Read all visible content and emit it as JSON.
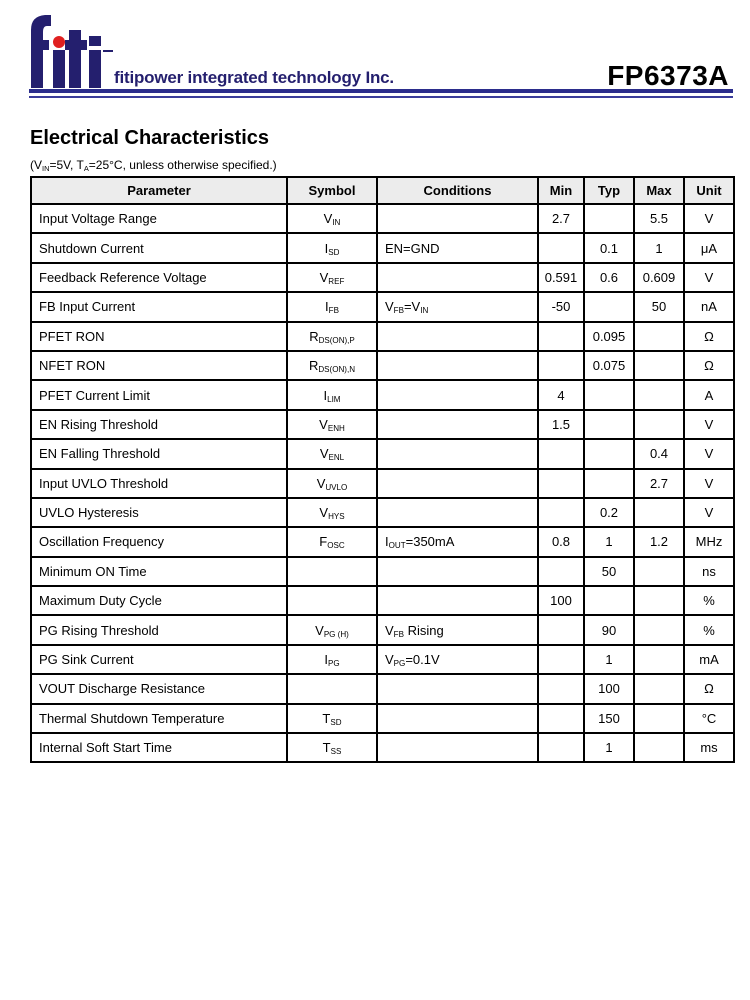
{
  "header": {
    "logo_text": "fiti",
    "company": "fitipower integrated technology Inc.",
    "part_number": "FP6373A",
    "brand_color": "#241f6e",
    "accent_dot_color": "#e02020"
  },
  "section": {
    "title": "Electrical Characteristics",
    "note_parts": [
      {
        "t": "(V"
      },
      {
        "t": "IN",
        "sub": true
      },
      {
        "t": "=5V, T"
      },
      {
        "t": "A",
        "sub": true
      },
      {
        "t": "=25°C, unless otherwise specified.)"
      }
    ]
  },
  "table": {
    "headers": [
      "Parameter",
      "Symbol",
      "Conditions",
      "Min",
      "Typ",
      "Max",
      "Unit"
    ],
    "rows": [
      {
        "param": "Input Voltage Range",
        "sym": [
          {
            "t": "V"
          },
          {
            "t": "IN",
            "sub": true
          }
        ],
        "cond": [],
        "min": "2.7",
        "typ": "",
        "max": "5.5",
        "unit": "V"
      },
      {
        "param": "Shutdown Current",
        "sym": [
          {
            "t": "I"
          },
          {
            "t": "SD",
            "sub": true
          }
        ],
        "cond": [
          {
            "t": "EN=GND"
          }
        ],
        "min": "",
        "typ": "0.1",
        "max": "1",
        "unit": "μA"
      },
      {
        "param": "Feedback Reference Voltage",
        "sym": [
          {
            "t": "V"
          },
          {
            "t": "REF",
            "sub": true
          }
        ],
        "cond": [],
        "min": "0.591",
        "typ": "0.6",
        "max": "0.609",
        "unit": "V"
      },
      {
        "param": "FB Input Current",
        "sym": [
          {
            "t": "I"
          },
          {
            "t": "FB",
            "sub": true
          }
        ],
        "cond": [
          {
            "t": "V"
          },
          {
            "t": "FB",
            "sub": true
          },
          {
            "t": "=V"
          },
          {
            "t": "IN",
            "sub": true
          }
        ],
        "min": "-50",
        "typ": "",
        "max": "50",
        "unit": "nA"
      },
      {
        "param": "PFET RON",
        "sym": [
          {
            "t": "R"
          },
          {
            "t": "DS(ON),P",
            "sub": true
          }
        ],
        "cond": [],
        "min": "",
        "typ": "0.095",
        "max": "",
        "unit": "Ω"
      },
      {
        "param": "NFET RON",
        "sym": [
          {
            "t": "R"
          },
          {
            "t": "DS(ON),N",
            "sub": true
          }
        ],
        "cond": [],
        "min": "",
        "typ": "0.075",
        "max": "",
        "unit": "Ω"
      },
      {
        "param": "PFET Current Limit",
        "sym": [
          {
            "t": "I"
          },
          {
            "t": "LIM",
            "sub": true
          }
        ],
        "cond": [],
        "min": "4",
        "typ": "",
        "max": "",
        "unit": "A"
      },
      {
        "param": "EN Rising Threshold",
        "sym": [
          {
            "t": "V"
          },
          {
            "t": "ENH",
            "sub": true
          }
        ],
        "cond": [],
        "min": "1.5",
        "typ": "",
        "max": "",
        "unit": "V"
      },
      {
        "param": "EN Falling Threshold",
        "sym": [
          {
            "t": "V"
          },
          {
            "t": "ENL",
            "sub": true
          }
        ],
        "cond": [],
        "min": "",
        "typ": "",
        "max": "0.4",
        "unit": "V"
      },
      {
        "param": "Input UVLO Threshold",
        "sym": [
          {
            "t": "V"
          },
          {
            "t": "UVLO",
            "sub": true
          }
        ],
        "cond": [],
        "min": "",
        "typ": "",
        "max": "2.7",
        "unit": "V"
      },
      {
        "param": "UVLO Hysteresis",
        "sym": [
          {
            "t": "V"
          },
          {
            "t": "HYS",
            "sub": true
          }
        ],
        "cond": [],
        "min": "",
        "typ": "0.2",
        "max": "",
        "unit": "V"
      },
      {
        "param": "Oscillation Frequency",
        "sym": [
          {
            "t": "F"
          },
          {
            "t": "OSC",
            "sub": true
          }
        ],
        "cond": [
          {
            "t": "I"
          },
          {
            "t": "OUT",
            "sub": true
          },
          {
            "t": "=350mA"
          }
        ],
        "min": "0.8",
        "typ": "1",
        "max": "1.2",
        "unit": "MHz"
      },
      {
        "param": "Minimum ON Time",
        "sym": [],
        "cond": [],
        "min": "",
        "typ": "50",
        "max": "",
        "unit": "ns"
      },
      {
        "param": "Maximum Duty Cycle",
        "sym": [],
        "cond": [],
        "min": "100",
        "typ": "",
        "max": "",
        "unit": "%"
      },
      {
        "param": "PG Rising Threshold",
        "sym": [
          {
            "t": "V"
          },
          {
            "t": "PG (H)",
            "sub": true
          }
        ],
        "cond": [
          {
            "t": "V"
          },
          {
            "t": "FB",
            "sub": true
          },
          {
            "t": " Rising"
          }
        ],
        "min": "",
        "typ": "90",
        "max": "",
        "unit": "%"
      },
      {
        "param": "PG Sink Current",
        "sym": [
          {
            "t": "I"
          },
          {
            "t": "PG",
            "sub": true
          }
        ],
        "cond": [
          {
            "t": "V"
          },
          {
            "t": "PG",
            "sub": true
          },
          {
            "t": "=0.1V"
          }
        ],
        "min": "",
        "typ": "1",
        "max": "",
        "unit": "mA"
      },
      {
        "param": "VOUT Discharge Resistance",
        "sym": [],
        "cond": [],
        "min": "",
        "typ": "100",
        "max": "",
        "unit": "Ω"
      },
      {
        "param": "Thermal Shutdown Temperature",
        "sym": [
          {
            "t": "T"
          },
          {
            "t": "SD",
            "sub": true
          }
        ],
        "cond": [],
        "min": "",
        "typ": "150",
        "max": "",
        "unit": "°C"
      },
      {
        "param": "Internal Soft Start Time",
        "sym": [
          {
            "t": "T"
          },
          {
            "t": "SS",
            "sub": true
          }
        ],
        "cond": [],
        "min": "",
        "typ": "1",
        "max": "",
        "unit": "ms"
      }
    ]
  }
}
